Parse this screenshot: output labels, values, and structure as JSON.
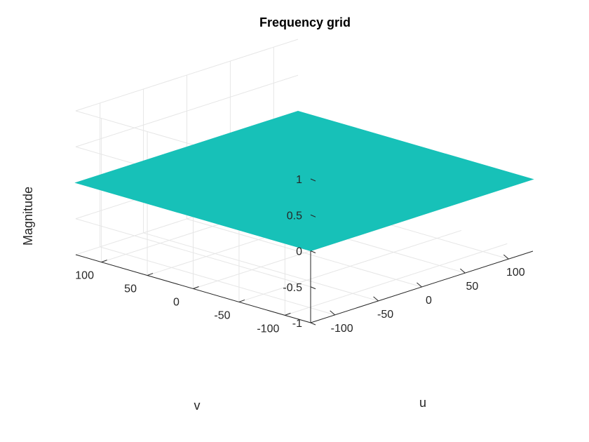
{
  "chart_data": {
    "type": "surface",
    "title": "Frequency grid",
    "xlabel": "u",
    "ylabel": "v",
    "zlabel": "Magnitude",
    "xlim": [
      -128,
      128
    ],
    "ylim": [
      -128,
      128
    ],
    "zlim": [
      -1,
      1
    ],
    "xticks": [
      "-100",
      "-50",
      "0",
      "50",
      "100"
    ],
    "xtick_values": [
      -100,
      -50,
      0,
      50,
      100
    ],
    "yticks": [
      "-100",
      "-50",
      "0",
      "50",
      "100"
    ],
    "ytick_values": [
      -100,
      -50,
      0,
      50,
      100
    ],
    "zticks": [
      "-1",
      "-0.5",
      "0",
      "0.5",
      "1"
    ],
    "ztick_values": [
      -1,
      -0.5,
      0,
      0.5,
      1
    ],
    "surface_z": 0,
    "surface_color": "#17c1b8",
    "grid": true
  }
}
